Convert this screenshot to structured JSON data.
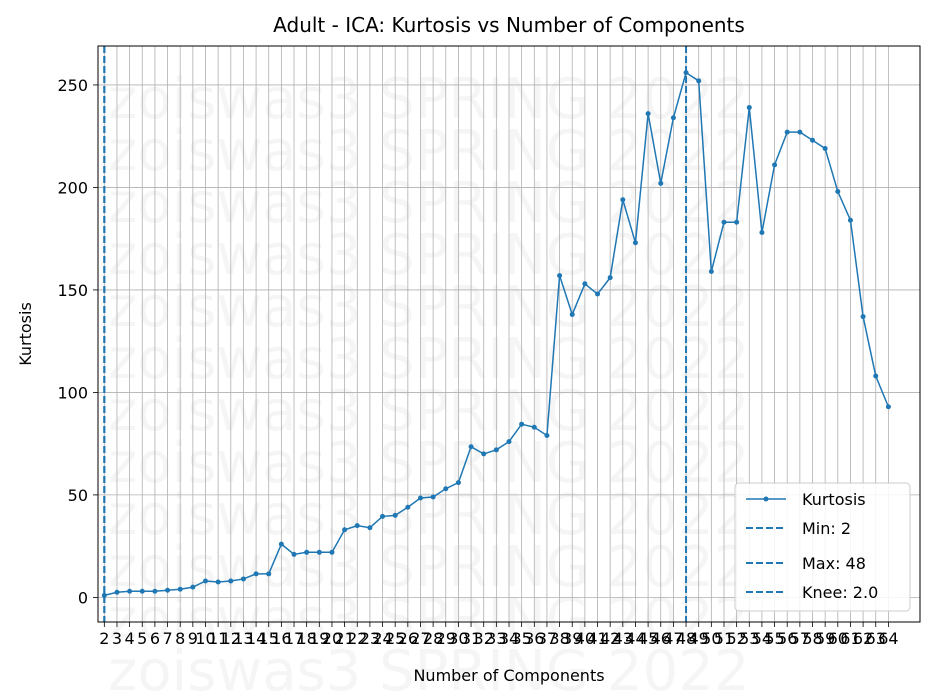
{
  "chart_data": {
    "type": "line",
    "title": "Adult - ICA: Kurtosis vs Number of Components",
    "xlabel": "Number of Components",
    "ylabel": "Kurtosis",
    "xlim": [
      -0.5,
      64.5
    ],
    "ylim": [
      -12,
      269
    ],
    "y_ticks": [
      0,
      50,
      100,
      150,
      200,
      250
    ],
    "x": [
      2,
      3,
      4,
      5,
      6,
      7,
      8,
      9,
      10,
      11,
      12,
      13,
      14,
      15,
      16,
      17,
      18,
      19,
      20,
      21,
      22,
      23,
      24,
      25,
      26,
      27,
      28,
      29,
      30,
      31,
      32,
      33,
      34,
      35,
      36,
      37,
      38,
      39,
      40,
      41,
      42,
      43,
      44,
      45,
      46,
      47,
      48,
      49,
      50,
      51,
      52,
      53,
      54,
      55,
      56,
      57,
      58,
      59,
      60,
      61,
      62,
      63,
      64
    ],
    "series": [
      {
        "name": "Kurtosis",
        "color": "#1f77b4",
        "values": [
          1,
          2.5,
          3,
          3,
          3,
          3.5,
          4,
          5,
          8,
          7.5,
          8,
          9,
          11.5,
          11.5,
          26,
          21,
          22,
          22,
          22,
          33,
          35,
          34,
          39.5,
          40,
          44,
          48.5,
          49,
          53,
          56,
          73.5,
          70,
          72,
          76,
          84.5,
          83,
          79,
          157,
          138,
          153,
          148,
          156,
          194,
          173,
          236,
          202,
          234,
          256,
          252,
          159,
          183,
          183,
          239,
          178,
          211,
          227,
          227,
          223,
          219,
          198,
          184,
          137,
          108,
          93
        ]
      }
    ],
    "vlines": [
      {
        "name": "Min: 2",
        "x": 2,
        "color": "#1f77b4"
      },
      {
        "name": "Max: 48",
        "x": 48,
        "color": "#1f77b4"
      },
      {
        "name": "Knee: 2.0",
        "x": 2.0,
        "color": "#1f77b4"
      }
    ],
    "grid": true,
    "legend_position": "lower-right",
    "watermark": "zoiswas3 SPRING 2022"
  }
}
